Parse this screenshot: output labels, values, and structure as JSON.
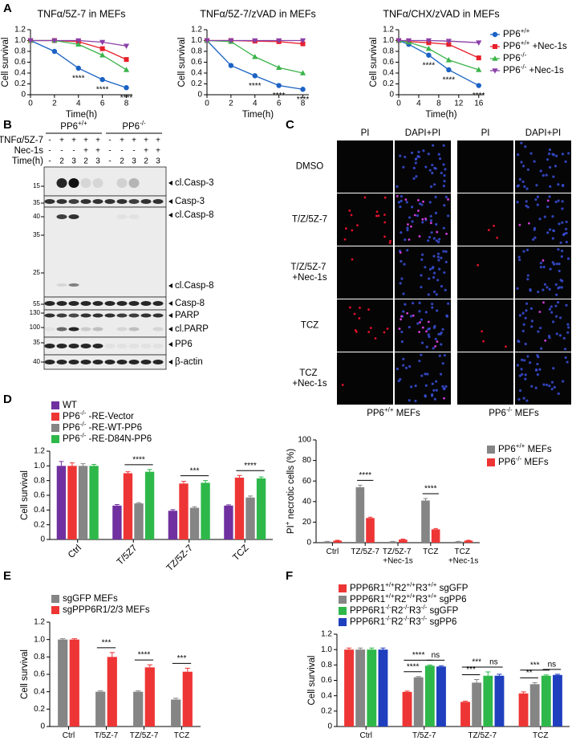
{
  "panels": [
    "A",
    "B",
    "C",
    "D",
    "E",
    "F"
  ],
  "chart_data": [
    {
      "type": "line",
      "title": "TNFα/5Z-7 in MEFs",
      "x_label": "Time(h)",
      "y_label": "Cell survival",
      "x": [
        0,
        2,
        4,
        6,
        8
      ],
      "xlim": [
        0,
        8.5
      ],
      "xticks": [
        0,
        2,
        4,
        6,
        8
      ],
      "ylim": [
        0,
        1.2
      ],
      "yticks": [
        0,
        0.2,
        0.4,
        0.6,
        0.8,
        {
          "value": 1,
          "label": "1.0"
        },
        1.2
      ],
      "series": [
        {
          "color": "#1b62c4",
          "marker": "circle",
          "values": [
            1,
            0.8,
            0.49,
            0.28,
            0.13
          ]
        },
        {
          "color": "#e8202a",
          "marker": "square",
          "values": [
            1,
            1,
            0.98,
            0.85,
            0.65
          ]
        },
        {
          "color": "#3cb44b",
          "marker": "triangle",
          "values": [
            1,
            1,
            0.93,
            0.73,
            0.46
          ]
        },
        {
          "color": "#8a3fa8",
          "marker": "triangle-down",
          "values": [
            1,
            1,
            1,
            0.97,
            0.9
          ]
        }
      ],
      "annotations": [
        {
          "text": "****",
          "x": 4
        },
        {
          "text": "****",
          "x": 6
        },
        {
          "text": "****",
          "x": 8
        }
      ]
    },
    {
      "type": "line",
      "title": "TNFα/5Z-7/zVAD in MEFs",
      "x_label": "Time(h)",
      "y_label": "Cell survival",
      "x": [
        0,
        2,
        4,
        6,
        8
      ],
      "xlim": [
        0,
        8.5
      ],
      "xticks": [
        0,
        2,
        4,
        6,
        8
      ],
      "ylim": [
        0,
        1.2
      ],
      "yticks": [
        0,
        0.2,
        0.4,
        0.6,
        0.8,
        {
          "value": 1,
          "label": "1.0"
        },
        1.2
      ],
      "series": [
        {
          "color": "#1b62c4",
          "marker": "circle",
          "values": [
            1,
            0.54,
            0.35,
            0.17,
            0.1
          ]
        },
        {
          "color": "#e8202a",
          "marker": "square",
          "values": [
            1,
            1,
            0.99,
            0.98,
            0.94
          ]
        },
        {
          "color": "#3cb44b",
          "marker": "triangle",
          "values": [
            1,
            0.98,
            0.7,
            0.5,
            0.4
          ]
        },
        {
          "color": "#8a3fa8",
          "marker": "triangle-down",
          "values": [
            1,
            1,
            1,
            1,
            1
          ]
        }
      ],
      "annotations": [
        {
          "text": "****",
          "x": 4
        },
        {
          "text": "****",
          "x": 6
        },
        {
          "text": "****",
          "x": 8
        }
      ]
    },
    {
      "type": "line",
      "title": "TNFα/CHX/zVAD in MEFs",
      "x_label": "Time(h)",
      "y_label": "Cell survival",
      "x": [
        0,
        2,
        6,
        10,
        16
      ],
      "xlim": [
        0,
        17
      ],
      "xticks": [
        0,
        4,
        8,
        12,
        16
      ],
      "ylim": [
        0,
        1.2
      ],
      "yticks": [
        0,
        0.2,
        0.4,
        0.6,
        0.8,
        {
          "value": 1,
          "label": "1.0"
        },
        1.2
      ],
      "legend": "right",
      "series": [
        {
          "name": "PP6+/+",
          "color": "#1b62c4",
          "marker": "circle",
          "values": [
            1,
            0.93,
            0.73,
            0.46,
            0.17
          ]
        },
        {
          "name": "PP6+/+ +Nec-1s",
          "color": "#e8202a",
          "marker": "square",
          "values": [
            1,
            0.98,
            0.96,
            0.93,
            0.68
          ]
        },
        {
          "name": "PP6-/-",
          "color": "#3cb44b",
          "marker": "triangle",
          "values": [
            1,
            0.97,
            0.85,
            0.64,
            0.46
          ]
        },
        {
          "name": "PP6-/- +Nec-1s",
          "color": "#8a3fa8",
          "marker": "triangle-down",
          "values": [
            1,
            1,
            1,
            0.99,
            0.96
          ]
        }
      ],
      "annotations": [
        {
          "text": "****",
          "x": 6
        },
        {
          "text": "****",
          "x": 10
        },
        {
          "text": "****",
          "x": 16
        }
      ]
    },
    {
      "type": "bar",
      "y_label": "PI+ necrotic cells (%)",
      "categories": [
        "Ctrl",
        "TZ/5Z-7",
        "TZ/5Z-7 +Nec-1s",
        "TCZ",
        "TCZ +Nec-1s"
      ],
      "ylim": [
        0,
        100
      ],
      "yticks": [
        0,
        20,
        40,
        60,
        80,
        100
      ],
      "legend": "right",
      "series": [
        {
          "name": "PP6+/+ MEFs",
          "color": "#858585",
          "values": [
            1,
            54,
            1,
            41,
            1
          ],
          "errors": [
            0.3,
            2,
            0.3,
            2,
            0.3
          ]
        },
        {
          "name": "PP6-/- MEFs",
          "color": "#ee3535",
          "values": [
            2,
            24,
            3,
            13,
            2
          ],
          "errors": [
            0.3,
            0.8,
            0.5,
            0.8,
            0.3
          ]
        }
      ],
      "annotations": [
        {
          "text": "****",
          "category": 1,
          "pair": [
            0,
            1
          ]
        },
        {
          "text": "****",
          "category": 3,
          "pair": [
            0,
            1
          ]
        }
      ]
    },
    {
      "type": "bar",
      "y_label": "Cell survival",
      "label_rotation": 45,
      "categories": [
        "Ctrl",
        "T/5Z7",
        "TZ/5Z-7",
        "TCZ"
      ],
      "ylim": [
        0,
        1.2
      ],
      "yticks": [
        0,
        0.2,
        0.4,
        0.6,
        0.8,
        {
          "value": 1,
          "label": "1.0"
        },
        1.2
      ],
      "legend": "top",
      "series": [
        {
          "name": "WT",
          "color": "#7030a0",
          "values": [
            1,
            0.46,
            0.39,
            0.46
          ],
          "errors": [
            0.06,
            0.015,
            0.015,
            0.01
          ]
        },
        {
          "name": "PP6-/- -RE-Vector",
          "color": "#ee3535",
          "values": [
            1,
            0.9,
            0.76,
            0.84
          ],
          "errors": [
            0.04,
            0.02,
            0.03,
            0.03
          ]
        },
        {
          "name": "PP6-/- -RE-WT-PP6",
          "color": "#858585",
          "values": [
            1,
            0.49,
            0.43,
            0.57
          ],
          "errors": [
            0.03,
            0.01,
            0.015,
            0.02
          ]
        },
        {
          "name": "PP6-/- -RE-D84N-PP6",
          "color": "#2eb84a",
          "values": [
            1,
            0.92,
            0.77,
            0.83
          ],
          "errors": [
            0.02,
            0.03,
            0.03,
            0.02
          ]
        }
      ],
      "annotations": [
        {
          "text": "****",
          "category": 1,
          "pair": [
            1,
            3
          ]
        },
        {
          "text": "***",
          "category": 2,
          "pair": [
            1,
            3
          ]
        },
        {
          "text": "****",
          "category": 3,
          "pair": [
            1,
            3
          ]
        }
      ]
    },
    {
      "type": "bar",
      "y_label": "Cell survival",
      "categories": [
        "Ctrl",
        "T/5Z-7",
        "TZ/5Z-7",
        "TCZ"
      ],
      "ylim": [
        0,
        1.2
      ],
      "yticks": [
        0,
        0.2,
        0.4,
        0.6,
        0.8,
        {
          "value": 1,
          "label": "1.0"
        },
        1.2
      ],
      "legend": "top",
      "series": [
        {
          "name": "sgGFP MEFs",
          "color": "#858585",
          "values": [
            1,
            0.4,
            0.4,
            0.31
          ],
          "errors": [
            0.01,
            0.01,
            0.01,
            0.015
          ]
        },
        {
          "name": "sgPPP6R1/2/3 MEFs",
          "color": "#ee3535",
          "values": [
            1,
            0.8,
            0.68,
            0.63
          ],
          "errors": [
            0.01,
            0.05,
            0.03,
            0.04
          ]
        }
      ],
      "annotations": [
        {
          "text": "***",
          "category": 1,
          "pair": [
            0,
            1
          ]
        },
        {
          "text": "****",
          "category": 2,
          "pair": [
            0,
            1
          ]
        },
        {
          "text": "***",
          "category": 3,
          "pair": [
            0,
            1
          ]
        }
      ]
    },
    {
      "type": "bar",
      "y_label": "Cell survival",
      "categories": [
        "Ctrl",
        "T/5Z-7",
        "TZ/5Z-7",
        "TCZ"
      ],
      "ylim": [
        0,
        1.2
      ],
      "yticks": [
        0,
        0.2,
        0.4,
        0.6,
        0.8,
        {
          "value": 1,
          "label": "1.0"
        },
        1.2
      ],
      "legend": "top",
      "series": [
        {
          "name": "PPP6R1+/+R2+/+R3+/+ sgGFP",
          "color": "#ee3535",
          "values": [
            1,
            0.45,
            0.32,
            0.43
          ],
          "errors": [
            0.02,
            0.01,
            0.01,
            0.02
          ]
        },
        {
          "name": "PPP6R1+/+R2+/+R3+/+ sgPP6",
          "color": "#858585",
          "values": [
            1,
            0.64,
            0.57,
            0.55
          ],
          "errors": [
            0.02,
            0.01,
            0.04,
            0.02
          ]
        },
        {
          "name": "PPP6R1-/-R2-/-R3-/- sgGFP",
          "color": "#2eb84a",
          "values": [
            1,
            0.79,
            0.66,
            0.66
          ],
          "errors": [
            0.02,
            0.01,
            0.05,
            0.01
          ]
        },
        {
          "name": "PPP6R1-/-R2-/-R3-/- sgPP6",
          "color": "#1f3fbf",
          "values": [
            1,
            0.78,
            0.66,
            0.67
          ],
          "errors": [
            0.02,
            0.01,
            0.02,
            0.01
          ]
        }
      ],
      "annotations": [
        {
          "text": "****",
          "category": 1,
          "pair": [
            0,
            1
          ]
        },
        {
          "text": "****",
          "category": 1,
          "pair": [
            0,
            2
          ]
        },
        {
          "text": "ns",
          "category": 1,
          "pair": [
            2,
            3
          ]
        },
        {
          "text": "***",
          "category": 2,
          "pair": [
            0,
            1
          ]
        },
        {
          "text": "***",
          "category": 2,
          "pair": [
            0,
            2
          ]
        },
        {
          "text": "ns",
          "category": 2,
          "pair": [
            2,
            3
          ]
        },
        {
          "text": "**",
          "category": 3,
          "pair": [
            0,
            1
          ]
        },
        {
          "text": "***",
          "category": 3,
          "pair": [
            0,
            2
          ]
        },
        {
          "text": "ns",
          "category": 3,
          "pair": [
            2,
            3
          ]
        }
      ]
    }
  ],
  "blot": {
    "groups": [
      "PP6+/+",
      "PP6-/-"
    ],
    "conditions": [
      {
        "label": "TNFα/5Z-7",
        "lanes": [
          "-",
          "+",
          "+",
          "+",
          "+",
          "-",
          "+",
          "+",
          "+",
          "+"
        ]
      },
      {
        "label": "Nec-1s",
        "lanes": [
          "-",
          "-",
          "-",
          "+",
          "+",
          "-",
          "-",
          "-",
          "+",
          "+"
        ]
      },
      {
        "label": "Time(h)",
        "lanes": [
          "-",
          "2",
          "3",
          "2",
          "3",
          "-",
          "2",
          "3",
          "2",
          "3"
        ]
      }
    ],
    "markers": [
      15,
      35,
      40,
      35,
      25,
      55,
      130,
      100,
      35,
      40
    ],
    "bands": [
      "cl.Casp-3",
      "Casp-3",
      "cl.Casp-8",
      "cl.Casp-8",
      "Casp-8",
      "PARP",
      "cl.PARP",
      "PP6",
      "β-actin"
    ]
  },
  "microscopy": {
    "columns": [
      "PI",
      "DAPI+PI",
      "PI",
      "DAPI+PI"
    ],
    "rows": [
      "DMSO",
      "T/Z/5Z-7",
      "T/Z/5Z-7 +Nec-1s",
      "TCZ",
      "TCZ +Nec-1s"
    ],
    "groups": [
      "PP6+/+ MEFs",
      "PP6-/- MEFs"
    ]
  }
}
